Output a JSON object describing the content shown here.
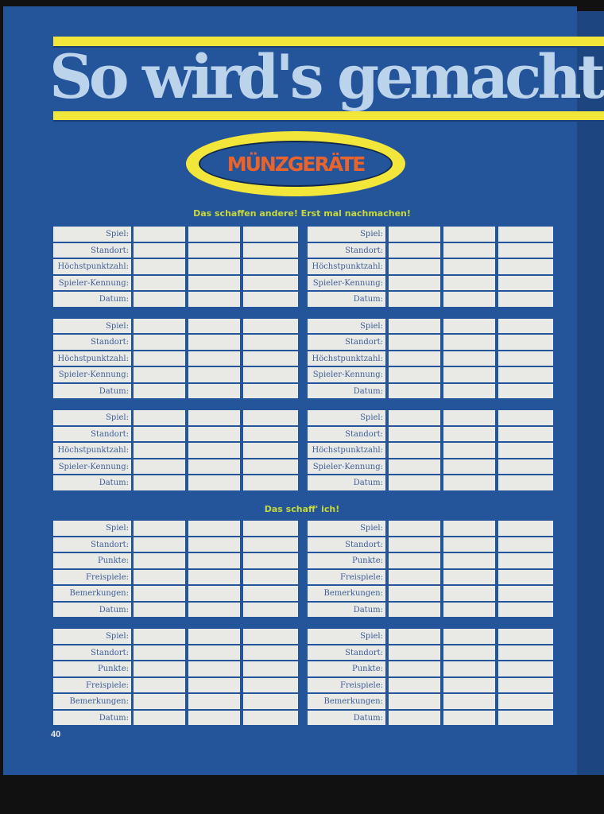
{
  "title": "So wird's gemacht",
  "badge": "MÜNZGERÄTE",
  "colors": {
    "page": "#24549a",
    "stripe": "#f2e63a",
    "badge_text": "#e8642c",
    "heading": "#c6d93a",
    "cell": "#e9e9e6"
  },
  "sections": [
    {
      "heading": "Das schaffen andere! Erst mal nachmachen!",
      "labels": [
        "Spiel:",
        "Standort:",
        "Höchstpunktzahl:",
        "Spieler-Kennung:",
        "Datum:"
      ],
      "block_rows": 3
    },
    {
      "heading": "Das schaff' ich!",
      "labels": [
        "Spiel:",
        "Standort:",
        "Punkte:",
        "Freispiele:",
        "Bemerkungen:",
        "Datum:"
      ],
      "block_rows": 2
    }
  ],
  "page_number": "40"
}
